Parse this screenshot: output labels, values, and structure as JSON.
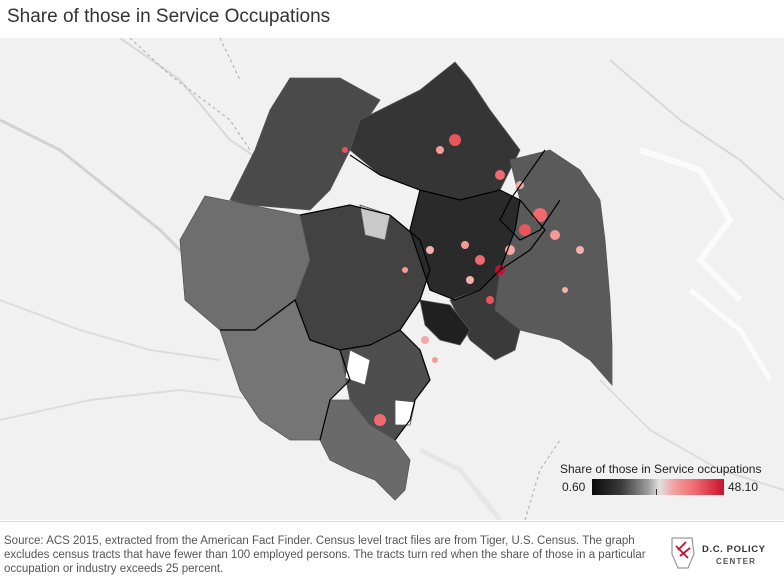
{
  "title": "Share of those in Service Occupations",
  "legend": {
    "title": "Share of those in Service occupations",
    "min": "0.60",
    "max": "48.10",
    "colors": [
      "#0a0a0a",
      "#9a9a9a",
      "#e0e0e0",
      "#ee6a70",
      "#c8102e"
    ]
  },
  "source": "Source: ACS 2015, extracted from the American Fact Finder. Census level tract files are from Tiger, U.S. Census. The graph excludes census tracts that have fewer than 100 employed persons. The tracts turn red when the share of those in a particular occupation or industry exceeds 25 percent.",
  "logo": {
    "line1": "D.C. POLICY",
    "line2": "CENTER",
    "icon": "dc-policy-center-logo-icon"
  },
  "colors": {
    "background": "#f1f1f1",
    "water": "#fafafa",
    "accent_red": "#e8555c"
  }
}
